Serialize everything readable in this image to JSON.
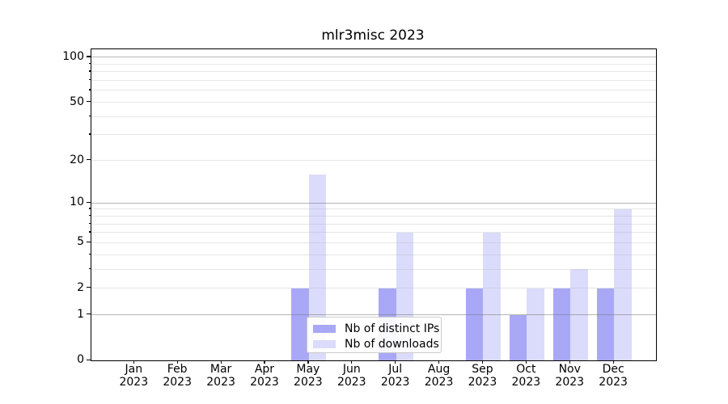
{
  "title": "mlr3misc 2023",
  "chart_data": {
    "type": "bar",
    "title": "mlr3misc 2023",
    "y_scale": "log1p",
    "ylabel": "",
    "xlabel": "",
    "ylim": [
      0,
      113
    ],
    "y_ticks": [
      0,
      1,
      2,
      5,
      10,
      20,
      50,
      100
    ],
    "grid_major": [
      1,
      10,
      100
    ],
    "grid_minor": [
      2,
      3,
      4,
      5,
      6,
      7,
      8,
      9,
      20,
      30,
      40,
      50,
      60,
      70,
      80,
      90
    ],
    "grid_style": "horizontal gridlines only, drawn above bars",
    "legend_position": "lower center",
    "categories": [
      {
        "month": "Jan",
        "year": "2023"
      },
      {
        "month": "Feb",
        "year": "2023"
      },
      {
        "month": "Mar",
        "year": "2023"
      },
      {
        "month": "Apr",
        "year": "2023"
      },
      {
        "month": "May",
        "year": "2023"
      },
      {
        "month": "Jun",
        "year": "2023"
      },
      {
        "month": "Jul",
        "year": "2023"
      },
      {
        "month": "Aug",
        "year": "2023"
      },
      {
        "month": "Sep",
        "year": "2023"
      },
      {
        "month": "Oct",
        "year": "2023"
      },
      {
        "month": "Nov",
        "year": "2023"
      },
      {
        "month": "Dec",
        "year": "2023"
      }
    ],
    "series": [
      {
        "name": "Nb of distinct IPs",
        "color": "#a8a8f6",
        "values": [
          0,
          0,
          0,
          0,
          2,
          0,
          2,
          0,
          2,
          1,
          2,
          2
        ]
      },
      {
        "name": "Nb of downloads",
        "color": "#dbdbfb",
        "values": [
          0,
          0,
          0,
          0,
          16,
          0,
          6,
          0,
          6,
          2,
          3,
          9
        ]
      }
    ]
  }
}
